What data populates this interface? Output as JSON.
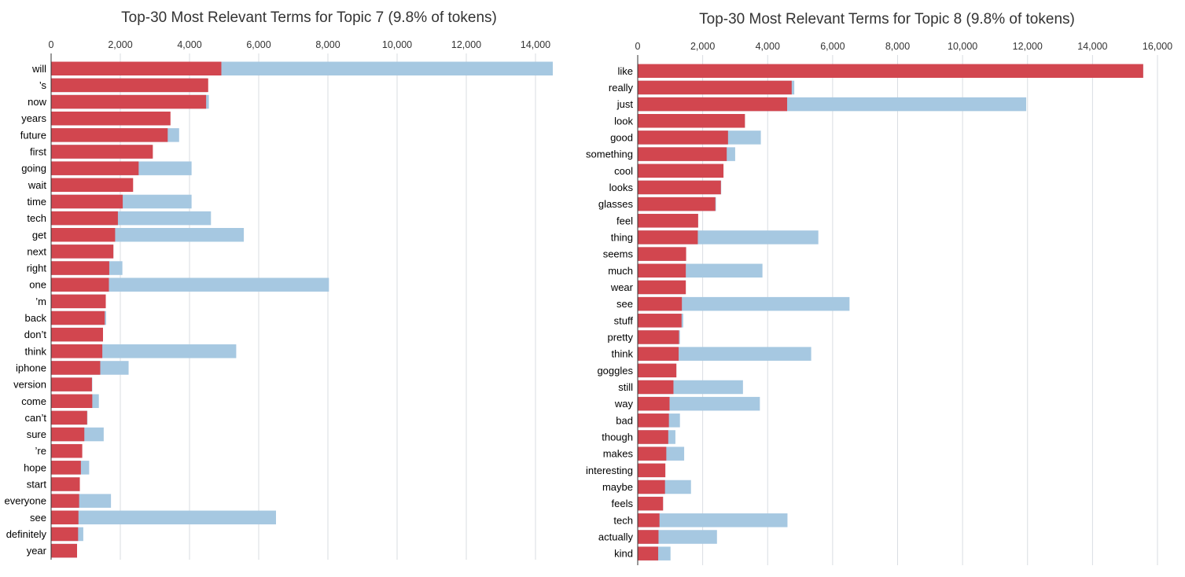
{
  "colors": {
    "overall_term_frequency": "#a6c8e1",
    "topic_term_frequency": "#d2464f",
    "grid": "#d9dde2"
  },
  "chart_data": [
    {
      "type": "bar",
      "orientation": "horizontal",
      "stacked": false,
      "title": "Top-30 Most Relevant Terms for Topic 7 (9.8% of tokens)",
      "xlim": [
        0,
        14500
      ],
      "x_ticks": [
        0,
        2000,
        4000,
        6000,
        8000,
        10000,
        12000,
        14000
      ],
      "x_tick_labels": [
        "0",
        "2,000",
        "4,000",
        "6,000",
        "8,000",
        "10,000",
        "12,000",
        "14,000"
      ],
      "grid": true,
      "categories": [
        "will",
        "’s",
        "now",
        "years",
        "future",
        "first",
        "going",
        "wait",
        "time",
        "tech",
        "get",
        "next",
        "right",
        "one",
        "’m",
        "back",
        "don’t",
        "think",
        "iphone",
        "version",
        "come",
        "can’t",
        "sure",
        "’re",
        "hope",
        "start",
        "everyone",
        "see",
        "definitely",
        "year"
      ],
      "series": [
        {
          "values": [
            14500,
            4500,
            4560,
            3300,
            3700,
            2900,
            4060,
            2300,
            4060,
            4620,
            5570,
            1800,
            2060,
            8030,
            1560,
            1590,
            1500,
            5350,
            2240,
            1190,
            1380,
            1050,
            1520,
            870,
            1100,
            830,
            1730,
            6500,
            930,
            750
          ]
        },
        {
          "values": [
            4920,
            4540,
            4480,
            3450,
            3370,
            2940,
            2530,
            2370,
            2070,
            1930,
            1850,
            1800,
            1680,
            1670,
            1580,
            1550,
            1500,
            1480,
            1420,
            1180,
            1190,
            1040,
            960,
            900,
            860,
            830,
            810,
            790,
            780,
            750
          ]
        }
      ]
    },
    {
      "type": "bar",
      "orientation": "horizontal",
      "stacked": false,
      "title": "Top-30 Most Relevant Terms for Topic 8 (9.8% of tokens)",
      "xlim": [
        0,
        16000
      ],
      "x_ticks": [
        0,
        2000,
        4000,
        6000,
        8000,
        10000,
        12000,
        14000,
        16000
      ],
      "x_tick_labels": [
        "0",
        "2,000",
        "4,000",
        "6,000",
        "8,000",
        "10,000",
        "12,000",
        "14,000",
        "16,000"
      ],
      "grid": true,
      "categories": [
        "like",
        "really",
        "just",
        "look",
        "good",
        "something",
        "cool",
        "looks",
        "glasses",
        "feel",
        "thing",
        "seems",
        "much",
        "wear",
        "see",
        "stuff",
        "pretty",
        "think",
        "goggles",
        "still",
        "way",
        "bad",
        "though",
        "makes",
        "interesting",
        "maybe",
        "feels",
        "tech",
        "actually",
        "kind"
      ],
      "series": [
        {
          "values": [
            15560,
            4820,
            11960,
            3300,
            3790,
            3000,
            2640,
            2570,
            2410,
            1860,
            5560,
            1490,
            3840,
            1480,
            6520,
            1400,
            1300,
            5340,
            1190,
            3240,
            3760,
            1300,
            1160,
            1430,
            850,
            1640,
            780,
            4610,
            2440,
            1010
          ]
        },
        {
          "values": [
            15560,
            4740,
            4600,
            3300,
            2780,
            2740,
            2640,
            2560,
            2390,
            1860,
            1850,
            1490,
            1480,
            1480,
            1360,
            1350,
            1270,
            1260,
            1190,
            1100,
            980,
            960,
            940,
            880,
            850,
            840,
            780,
            670,
            640,
            630
          ]
        }
      ]
    }
  ]
}
